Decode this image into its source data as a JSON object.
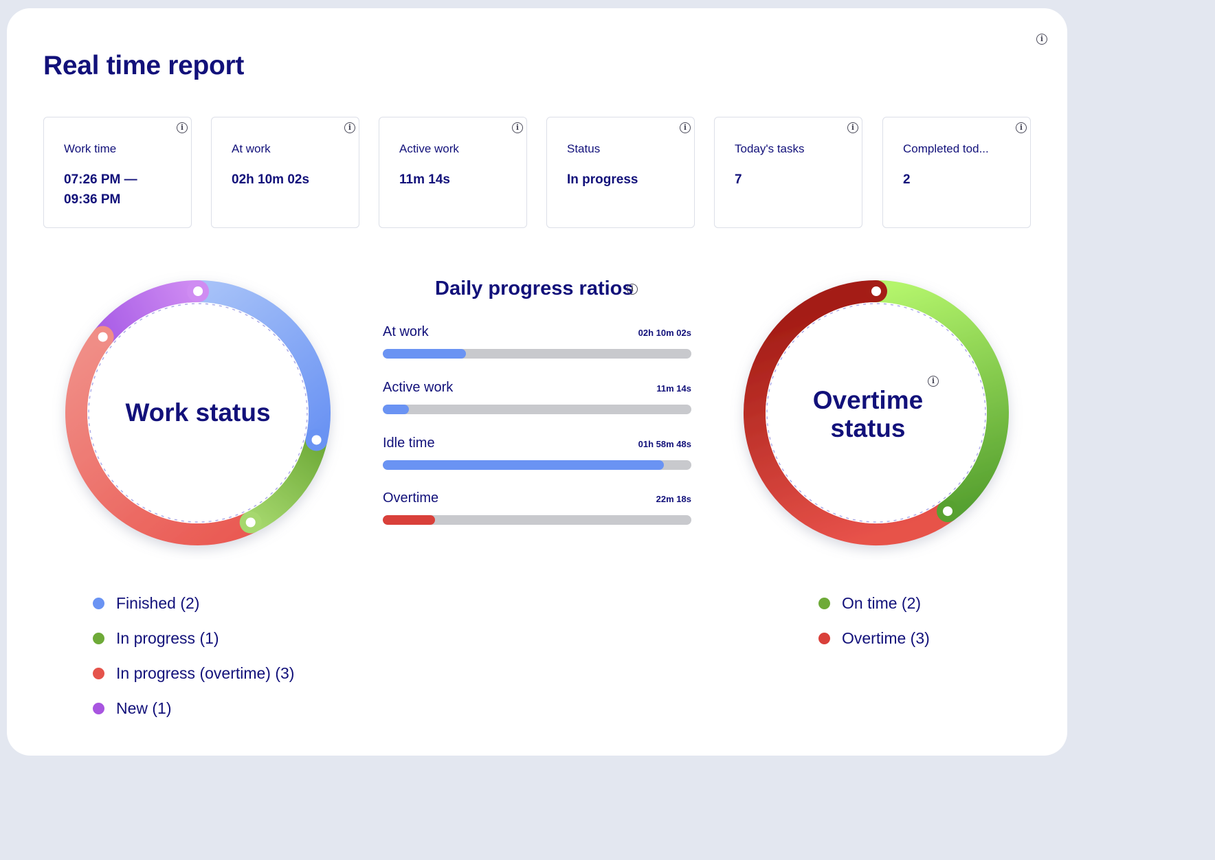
{
  "page": {
    "title": "Real time report",
    "info_icon": "info-icon"
  },
  "cards": [
    {
      "label": "Work time",
      "value_line1": "07:26 PM —",
      "value_line2": "09:36 PM"
    },
    {
      "label": "At work",
      "value_line1": "02h 10m 02s",
      "value_line2": ""
    },
    {
      "label": "Active work",
      "value_line1": "11m 14s",
      "value_line2": ""
    },
    {
      "label": "Status",
      "value_line1": "In progress",
      "value_line2": ""
    },
    {
      "label": "Today's tasks",
      "value_line1": "7",
      "value_line2": ""
    },
    {
      "label": "Completed tod...",
      "value_line1": "2",
      "value_line2": ""
    }
  ],
  "work_status": {
    "title": "Work status",
    "segments": [
      {
        "name": "New",
        "count": 1,
        "colors": [
          "#a85de6",
          "#cf8cf2"
        ]
      },
      {
        "name": "Finished",
        "count": 2,
        "colors": [
          "#a7c2f8",
          "#6a93f3"
        ]
      },
      {
        "name": "In progress",
        "count": 1,
        "colors": [
          "#6eaa38",
          "#a6d86e"
        ]
      },
      {
        "name": "In progress (overtime)",
        "count": 3,
        "colors": [
          "#ea5a53",
          "#f08d86"
        ]
      }
    ],
    "legend": [
      {
        "label": "Finished (2)",
        "color": "#6a93f3"
      },
      {
        "label": "In progress (1)",
        "color": "#6eaa38"
      },
      {
        "label": "In progress (overtime) (3)",
        "color": "#e5534b"
      },
      {
        "label": "New (1)",
        "color": "#a855e0"
      }
    ]
  },
  "daily_progress": {
    "title": "Daily progress ratios",
    "bars": [
      {
        "label": "At work",
        "value": "02h 10m 02s",
        "fraction": 0.27,
        "color": "#6a93f3"
      },
      {
        "label": "Active work",
        "value": "11m 14s",
        "fraction": 0.085,
        "color": "#6a93f3"
      },
      {
        "label": "Idle time",
        "value": "01h 58m 48s",
        "fraction": 0.91,
        "color": "#6a93f3"
      },
      {
        "label": "Overtime",
        "value": "22m 18s",
        "fraction": 0.17,
        "color": "#d9403a"
      }
    ]
  },
  "overtime_status": {
    "title_line1": "Overtime",
    "title_line2": "status",
    "segments": [
      {
        "name": "On time",
        "count": 2,
        "colors": [
          "#b4f56c",
          "#57a130"
        ]
      },
      {
        "name": "Overtime",
        "count": 3,
        "colors": [
          "#e7524a",
          "#a41d16"
        ]
      }
    ],
    "legend": [
      {
        "label": "On time (2)",
        "color": "#6eaa38"
      },
      {
        "label": "Overtime (3)",
        "color": "#d9403a"
      }
    ]
  }
}
